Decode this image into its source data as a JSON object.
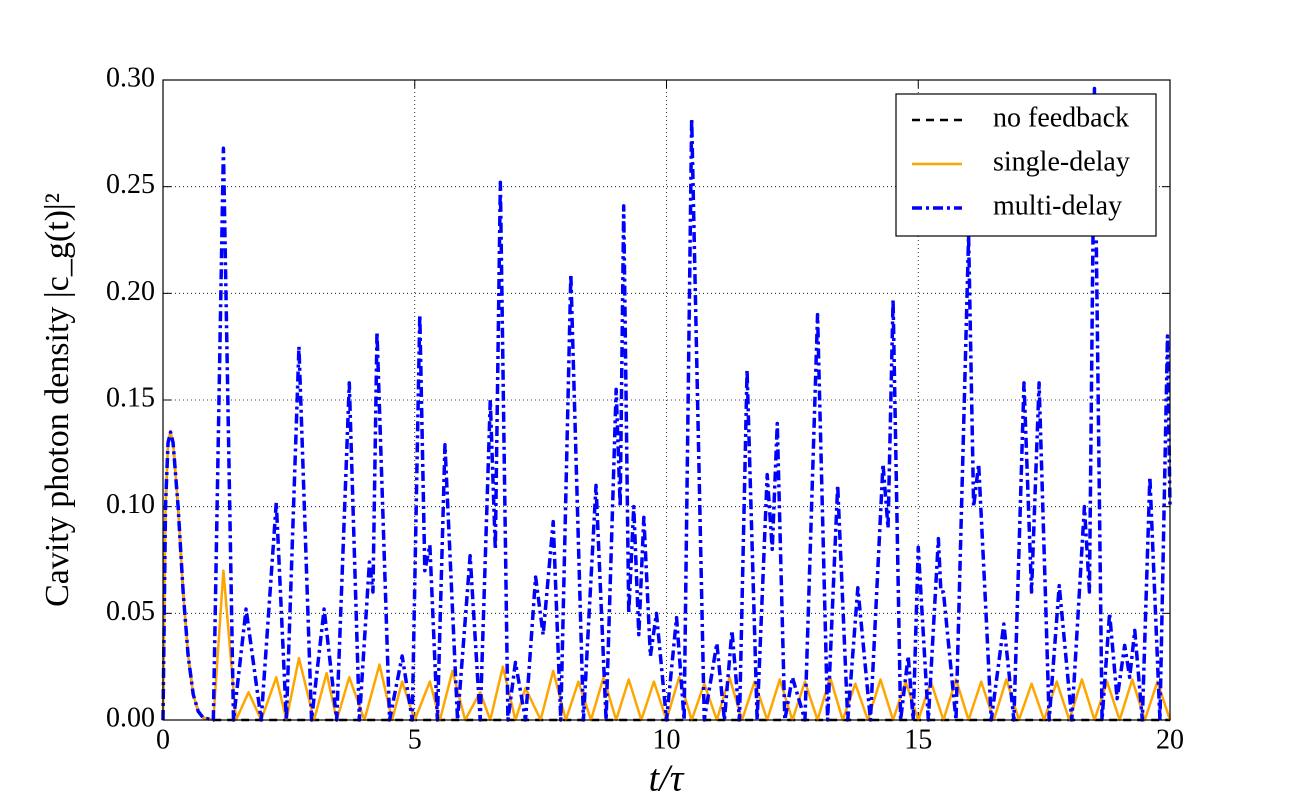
{
  "chart_data": {
    "type": "line",
    "xlabel": "t/τ",
    "ylabel": "Cavity photon density |c_g(t)|²",
    "xlim": [
      0,
      20
    ],
    "ylim": [
      0,
      0.3
    ],
    "xticks": [
      0,
      5,
      10,
      15,
      20
    ],
    "yticks": [
      {
        "value": 0,
        "label": "0.00"
      },
      {
        "value": 0.05,
        "label": "0.05"
      },
      {
        "value": 0.1,
        "label": "0.10"
      },
      {
        "value": 0.15,
        "label": "0.15"
      },
      {
        "value": 0.2,
        "label": "0.20"
      },
      {
        "value": 0.25,
        "label": "0.25"
      },
      {
        "value": 0.3,
        "label": "0.30"
      }
    ],
    "grid": true,
    "legend": "upper right",
    "series": [
      {
        "name": "no feedback",
        "color": "#000000",
        "style": "dashed",
        "x": [
          0,
          0.05,
          0.1,
          0.15,
          0.2,
          0.3,
          0.4,
          0.5,
          0.6,
          0.7,
          0.8,
          1.0,
          20
        ],
        "values": [
          0,
          0.1,
          0.13,
          0.135,
          0.13,
          0.1,
          0.06,
          0.03,
          0.012,
          0.004,
          0.001,
          0,
          0
        ]
      },
      {
        "name": "single-delay",
        "color": "#ffa500",
        "style": "solid",
        "x": [
          0,
          0.05,
          0.1,
          0.15,
          0.2,
          0.3,
          0.4,
          0.5,
          0.6,
          0.7,
          0.8,
          1.0,
          1.2,
          1.45,
          1.7,
          1.95,
          2.25,
          2.45,
          2.7,
          3.0,
          3.25,
          3.45,
          3.7,
          4.0,
          4.3,
          4.55,
          4.75,
          5.0,
          5.3,
          5.5,
          5.75,
          6.0,
          6.3,
          6.5,
          6.75,
          7.0,
          7.2,
          7.5,
          7.75,
          8.0,
          8.25,
          8.5,
          8.75,
          9.0,
          9.25,
          9.5,
          9.75,
          10.0,
          10.25,
          10.5,
          10.75,
          11.0,
          11.25,
          11.5,
          11.75,
          12.0,
          12.25,
          12.5,
          12.75,
          13.0,
          13.25,
          13.5,
          13.75,
          14.0,
          14.25,
          14.5,
          14.75,
          15.0,
          15.25,
          15.5,
          15.75,
          16.0,
          16.25,
          16.5,
          16.75,
          17.0,
          17.25,
          17.5,
          17.75,
          18.0,
          18.25,
          18.5,
          18.75,
          19.0,
          19.25,
          19.5,
          19.75,
          20.0
        ],
        "values": [
          0,
          0.1,
          0.13,
          0.135,
          0.13,
          0.1,
          0.06,
          0.03,
          0.012,
          0.004,
          0.001,
          0,
          0.07,
          0,
          0.013,
          0,
          0.02,
          0,
          0.029,
          0,
          0.022,
          0,
          0.02,
          0,
          0.026,
          0,
          0.018,
          0,
          0.018,
          0,
          0.023,
          0,
          0.013,
          0,
          0.025,
          0,
          0.015,
          0,
          0.023,
          0,
          0.018,
          0,
          0.02,
          0,
          0.019,
          0,
          0.018,
          0,
          0.02,
          0,
          0.017,
          0,
          0.02,
          0,
          0.018,
          0,
          0.019,
          0,
          0.018,
          0,
          0.02,
          0,
          0.017,
          0,
          0.019,
          0,
          0.018,
          0,
          0.018,
          0,
          0.019,
          0,
          0.018,
          0,
          0.019,
          0,
          0.017,
          0,
          0.018,
          0,
          0.019,
          0,
          0.018,
          0,
          0.019,
          0,
          0.018,
          0
        ]
      },
      {
        "name": "multi-delay",
        "color": "#0000ff",
        "style": "dashdot",
        "x": [
          0,
          0.05,
          0.1,
          0.15,
          0.2,
          0.3,
          0.4,
          0.5,
          0.6,
          0.7,
          0.8,
          1.0,
          1.2,
          1.4,
          1.65,
          1.95,
          2.25,
          2.45,
          2.7,
          2.95,
          3.2,
          3.45,
          3.7,
          3.9,
          4.1,
          4.17,
          4.25,
          4.5,
          4.75,
          4.95,
          5.1,
          5.2,
          5.3,
          5.45,
          5.6,
          5.85,
          6.1,
          6.3,
          6.5,
          6.6,
          6.7,
          6.85,
          7.0,
          7.2,
          7.4,
          7.55,
          7.75,
          7.9,
          8.1,
          8.35,
          8.6,
          8.8,
          9.0,
          9.08,
          9.15,
          9.25,
          9.35,
          9.45,
          9.55,
          9.68,
          9.8,
          10.0,
          10.2,
          10.35,
          10.5,
          10.75,
          11.0,
          11.15,
          11.3,
          11.45,
          11.6,
          11.8,
          12.0,
          12.1,
          12.2,
          12.35,
          12.5,
          12.75,
          13.0,
          13.2,
          13.4,
          13.6,
          13.8,
          14.05,
          14.3,
          14.4,
          14.5,
          14.65,
          14.8,
          14.9,
          15.0,
          15.2,
          15.4,
          15.45,
          15.5,
          15.75,
          16.0,
          16.1,
          16.2,
          16.45,
          16.7,
          16.9,
          17.1,
          17.25,
          17.4,
          17.6,
          17.8,
          18.05,
          18.3,
          18.4,
          18.5,
          18.65,
          18.8,
          18.95,
          19.1,
          19.2,
          19.3,
          19.45,
          19.6,
          19.8,
          19.95,
          20.0
        ],
        "values": [
          0,
          0.1,
          0.13,
          0.135,
          0.13,
          0.1,
          0.06,
          0.03,
          0.012,
          0.004,
          0.001,
          0,
          0.268,
          0,
          0.052,
          0,
          0.102,
          0,
          0.175,
          0,
          0.052,
          0,
          0.158,
          0,
          0.074,
          0.06,
          0.182,
          0,
          0.03,
          0,
          0.19,
          0.07,
          0.082,
          0,
          0.129,
          0,
          0.077,
          0,
          0.15,
          0.08,
          0.252,
          0,
          0.027,
          0,
          0.067,
          0.04,
          0.093,
          0,
          0.209,
          0,
          0.11,
          0,
          0.155,
          0.1,
          0.241,
          0.05,
          0.1,
          0.04,
          0.095,
          0.03,
          0.05,
          0,
          0.048,
          0,
          0.282,
          0,
          0.036,
          0,
          0.042,
          0,
          0.164,
          0,
          0.115,
          0.08,
          0.139,
          0,
          0.02,
          0,
          0.19,
          0,
          0.11,
          0,
          0.062,
          0,
          0.12,
          0.09,
          0.197,
          0,
          0.03,
          0,
          0.081,
          0,
          0.085,
          0.06,
          0.06,
          0,
          0.227,
          0.1,
          0.12,
          0,
          0.045,
          0,
          0.158,
          0.06,
          0.158,
          0,
          0.063,
          0,
          0.1,
          0.06,
          0.296,
          0,
          0.05,
          0.01,
          0.035,
          0.02,
          0.042,
          0,
          0.114,
          0,
          0.18,
          0.1
        ]
      }
    ]
  }
}
